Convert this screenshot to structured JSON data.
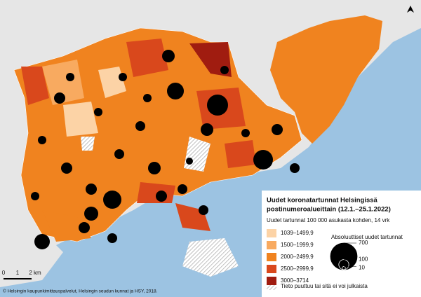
{
  "legend": {
    "title_lines": [
      "Uudet koronatartunnat Helsingissä",
      "postinumeroalueittain (12.1.–25.1.2022)"
    ],
    "subtitle": "Uudet tartunnat 100 000 asukasta kohden, 14 vrk",
    "classes": [
      {
        "label": "1039–1499,9",
        "color": "#fcd3a6"
      },
      {
        "label": "1500–1999,9",
        "color": "#f8aa60"
      },
      {
        "label": "2000–2499,9",
        "color": "#f0831f"
      },
      {
        "label": "2500–2999,9",
        "color": "#d9481c"
      },
      {
        "label": "3000–3714",
        "color": "#a01c10"
      }
    ],
    "missing": "Tieto puuttuu tai sitä ei voi julkaista"
  },
  "bubble_legend": {
    "title": "Absoluuttiset uudet tartunnat",
    "values": [
      700,
      100,
      10
    ]
  },
  "scale_bar": [
    "0",
    "1",
    "2 km"
  ],
  "credit": "© Helsingin kaupunkimittauspalvelut, Helsingin seudun kunnat ja HSY, 2018."
}
